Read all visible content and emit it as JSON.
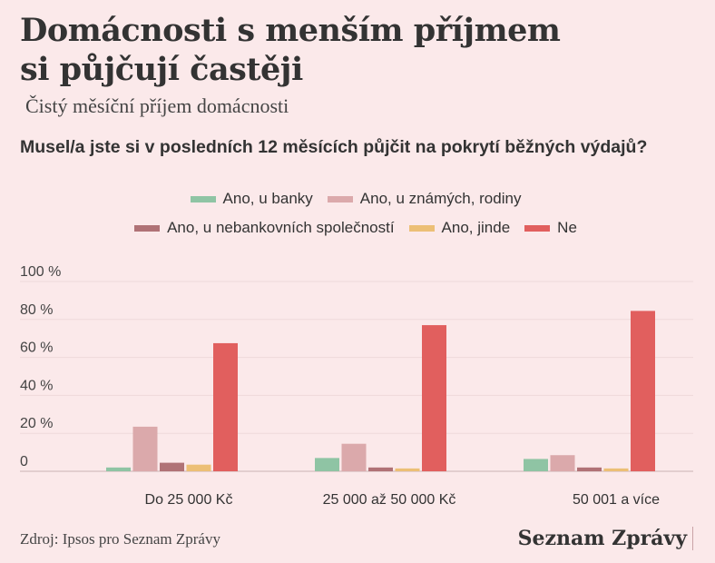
{
  "header": {
    "title_line1": "Domácnosti s menším příjmem",
    "title_line2": "si půjčují častěji",
    "subtitle": "Čistý měsíční příjem domácnosti",
    "question": "Musel/a jste si v posledních 12 měsících půjčit na pokrytí běžných výdajů?"
  },
  "footer": {
    "source": "Zdroj: Ipsos pro Seznam Zprávy",
    "brand": "Seznam Zprávy"
  },
  "chart_data": {
    "type": "bar",
    "categories": [
      "Do 25 000 Kč",
      "25 000 až 50 000 Kč",
      "50 001 a více"
    ],
    "series": [
      {
        "name": "Ano, u banky",
        "color": "#8fc4a4",
        "values": [
          2,
          7,
          6.5
        ]
      },
      {
        "name": "Ano, u známých, rodiny",
        "color": "#dba9ab",
        "values": [
          23.5,
          14.5,
          8.5
        ]
      },
      {
        "name": "Ano, u nebankovních společností",
        "color": "#b07276",
        "values": [
          4.5,
          2,
          2
        ]
      },
      {
        "name": "Ano, jinde",
        "color": "#ecbf76",
        "values": [
          3.5,
          1.5,
          1.5
        ]
      },
      {
        "name": "Ne",
        "color": "#e15f5e",
        "values": [
          67.5,
          77,
          84.5
        ]
      }
    ],
    "yticks": [
      "0",
      "20 %",
      "40 %",
      "60 %",
      "80 %",
      "100 %"
    ],
    "ylim": [
      0,
      100
    ],
    "grid": true,
    "legend": "top-center"
  }
}
